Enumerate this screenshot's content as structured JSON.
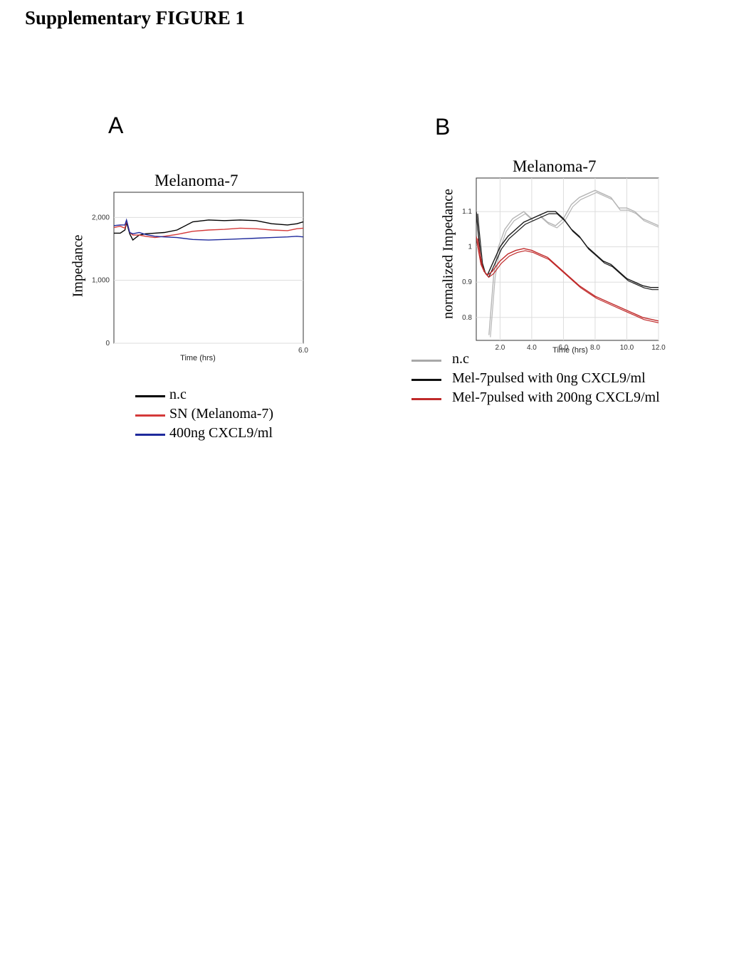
{
  "page": {
    "heading": "Supplementary FIGURE 1"
  },
  "panels": [
    {
      "letter": "A"
    },
    {
      "letter": "B"
    }
  ],
  "chart_data": [
    {
      "type": "line",
      "title": "Melanoma-7",
      "xlabel": "Time (hrs)",
      "ylabel": "Impedance",
      "xlim": [
        0,
        6.0
      ],
      "ylim": [
        0,
        2400
      ],
      "x_ticks": [
        {
          "value": 6.0,
          "label": "6.0"
        }
      ],
      "y_ticks": [
        {
          "value": 0,
          "label": "0"
        },
        {
          "value": 1000,
          "label": "1,000"
        },
        {
          "value": 2000,
          "label": "2,000"
        }
      ],
      "grid": true,
      "x": [
        0,
        0.2,
        0.35,
        0.4,
        0.5,
        0.6,
        0.8,
        1.0,
        1.3,
        1.6,
        2.0,
        2.5,
        3.0,
        3.5,
        4.0,
        4.5,
        5.0,
        5.5,
        5.8,
        6.0
      ],
      "series": [
        {
          "name": "n.c",
          "color": "#000000",
          "values": [
            1750,
            1750,
            1800,
            1920,
            1740,
            1640,
            1720,
            1740,
            1750,
            1760,
            1800,
            1930,
            1960,
            1950,
            1960,
            1950,
            1900,
            1880,
            1900,
            1930
          ]
        },
        {
          "name": "SN (Melanoma-7)",
          "color": "#d43a3a",
          "values": [
            1840,
            1860,
            1830,
            1950,
            1760,
            1720,
            1720,
            1700,
            1680,
            1700,
            1730,
            1780,
            1800,
            1810,
            1830,
            1820,
            1800,
            1790,
            1820,
            1830
          ]
        },
        {
          "name": "400ng CXCL9/ml",
          "color": "#1f2a9c",
          "values": [
            1870,
            1880,
            1880,
            1960,
            1760,
            1740,
            1760,
            1730,
            1700,
            1690,
            1680,
            1650,
            1640,
            1650,
            1660,
            1670,
            1680,
            1690,
            1700,
            1690
          ]
        }
      ]
    },
    {
      "type": "line",
      "title": "Melanoma-7",
      "xlabel": "Time (hrs)",
      "ylabel": "normalized Impedance",
      "xlim": [
        0.5,
        12.0
      ],
      "ylim": [
        0.735,
        1.195
      ],
      "x_ticks": [
        {
          "value": 2.0,
          "label": "2.0"
        },
        {
          "value": 4.0,
          "label": "4.0"
        },
        {
          "value": 6.0,
          "label": "6.0"
        },
        {
          "value": 8.0,
          "label": "8.0"
        },
        {
          "value": 10.0,
          "label": "10.0"
        },
        {
          "value": 12.0,
          "label": "12.0"
        }
      ],
      "y_ticks": [
        {
          "value": 0.8,
          "label": "0.8"
        },
        {
          "value": 0.9,
          "label": "0.9"
        },
        {
          "value": 1.0,
          "label": "1"
        },
        {
          "value": 1.1,
          "label": "1.1"
        }
      ],
      "grid": true,
      "series": [
        {
          "name": "n.c",
          "color": "#b5b5b5",
          "x": [
            1.3,
            1.6,
            1.9,
            2.3,
            2.8,
            3.5,
            4.0,
            4.5,
            5.0,
            5.5,
            6.0,
            6.5,
            7.0,
            7.5,
            8.0,
            8.5,
            9.0,
            9.5,
            10.0,
            10.5,
            11.0,
            11.5,
            12.0
          ],
          "values": [
            0.75,
            0.92,
            1.0,
            1.05,
            1.08,
            1.1,
            1.08,
            1.09,
            1.07,
            1.06,
            1.08,
            1.12,
            1.14,
            1.15,
            1.16,
            1.15,
            1.14,
            1.11,
            1.11,
            1.1,
            1.08,
            1.07,
            1.06
          ]
        },
        {
          "name": "Mel-7pulsed with 0ng CXCL9/ml",
          "color": "#1a1a1a",
          "x": [
            0.5,
            0.6,
            0.8,
            1.0,
            1.2,
            1.5,
            2.0,
            2.5,
            3.0,
            3.5,
            4.0,
            4.5,
            5.0,
            5.5,
            6.0,
            6.5,
            7.0,
            7.5,
            8.0,
            8.5,
            9.0,
            9.5,
            10.0,
            10.5,
            11.0,
            11.5,
            12.0
          ],
          "values": [
            1.1,
            1.05,
            0.96,
            0.93,
            0.92,
            0.95,
            1.0,
            1.03,
            1.05,
            1.07,
            1.08,
            1.09,
            1.1,
            1.1,
            1.08,
            1.05,
            1.03,
            1.0,
            0.98,
            0.96,
            0.95,
            0.93,
            0.91,
            0.9,
            0.89,
            0.885,
            0.885
          ]
        },
        {
          "name": "Mel-7pulsed with 200ng CXCL9/ml",
          "color": "#c02a2a",
          "x": [
            0.5,
            0.6,
            0.8,
            1.0,
            1.2,
            1.5,
            2.0,
            2.5,
            3.0,
            3.5,
            4.0,
            4.5,
            5.0,
            5.5,
            6.0,
            6.5,
            7.0,
            7.5,
            8.0,
            8.5,
            9.0,
            9.5,
            10.0,
            10.5,
            11.0,
            11.5,
            12.0
          ],
          "values": [
            1.03,
            1.0,
            0.95,
            0.93,
            0.92,
            0.93,
            0.96,
            0.98,
            0.99,
            0.995,
            0.99,
            0.98,
            0.97,
            0.95,
            0.93,
            0.91,
            0.89,
            0.875,
            0.86,
            0.85,
            0.84,
            0.83,
            0.82,
            0.81,
            0.8,
            0.795,
            0.79
          ]
        }
      ]
    }
  ]
}
